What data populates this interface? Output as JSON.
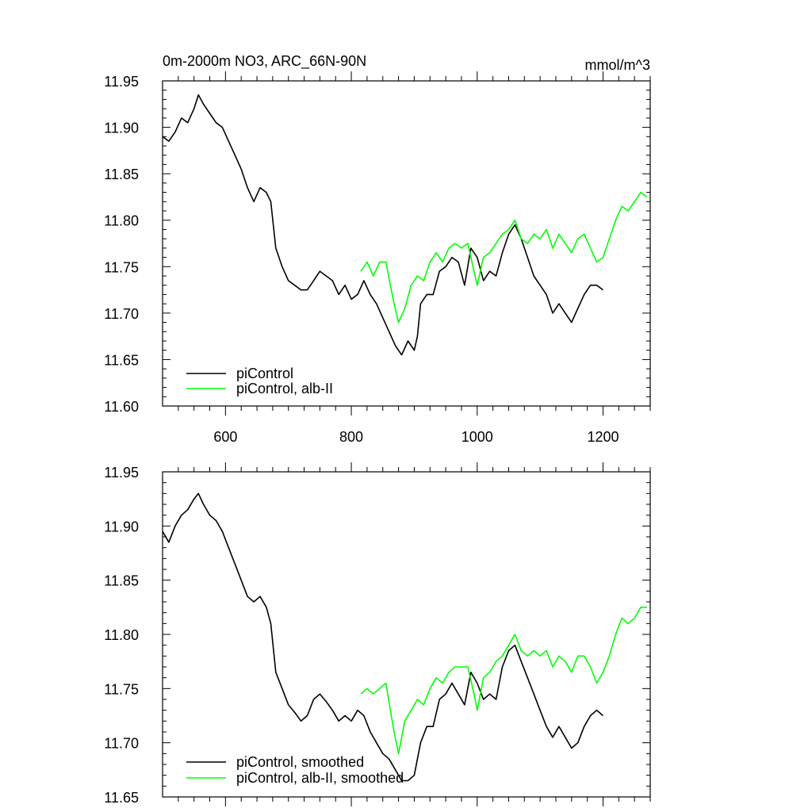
{
  "chart_data": [
    {
      "type": "line",
      "title": "0m-2000m NO3, ARC_66N-90N",
      "units_label": "mmol/m^3",
      "xlim": [
        500,
        1275
      ],
      "ylim": [
        11.6,
        11.95
      ],
      "xticks": [
        600,
        800,
        1000,
        1200
      ],
      "xtick_labels": [
        "600",
        "800",
        "1000",
        "1200"
      ],
      "yticks": [
        11.6,
        11.65,
        11.7,
        11.75,
        11.8,
        11.85,
        11.9,
        11.95
      ],
      "ytick_labels": [
        "11.60",
        "11.65",
        "11.70",
        "11.75",
        "11.80",
        "11.85",
        "11.90",
        "11.95"
      ],
      "grid": false,
      "legend_position": "bottom-left",
      "series": [
        {
          "name": "piControl",
          "color": "#000000",
          "x": [
            500,
            510,
            520,
            530,
            540,
            550,
            557,
            565,
            575,
            585,
            595,
            605,
            615,
            625,
            635,
            645,
            655,
            665,
            672,
            680,
            690,
            700,
            710,
            720,
            730,
            740,
            750,
            760,
            770,
            780,
            790,
            800,
            810,
            820,
            830,
            840,
            850,
            860,
            870,
            880,
            890,
            900,
            905,
            910,
            920,
            930,
            940,
            950,
            960,
            970,
            980,
            990,
            1000,
            1010,
            1020,
            1030,
            1040,
            1050,
            1060,
            1070,
            1080,
            1090,
            1100,
            1110,
            1120,
            1130,
            1140,
            1150,
            1160,
            1170,
            1180,
            1190,
            1200
          ],
          "y": [
            11.89,
            11.885,
            11.895,
            11.91,
            11.905,
            11.92,
            11.935,
            11.925,
            11.915,
            11.905,
            11.9,
            11.885,
            11.87,
            11.855,
            11.835,
            11.82,
            11.835,
            11.83,
            11.82,
            11.77,
            11.75,
            11.735,
            11.73,
            11.725,
            11.725,
            11.735,
            11.745,
            11.74,
            11.735,
            11.72,
            11.73,
            11.715,
            11.72,
            11.735,
            11.72,
            11.71,
            11.695,
            11.68,
            11.665,
            11.655,
            11.67,
            11.66,
            11.675,
            11.71,
            11.72,
            11.72,
            11.745,
            11.75,
            11.76,
            11.755,
            11.73,
            11.77,
            11.76,
            11.735,
            11.745,
            11.74,
            11.765,
            11.785,
            11.795,
            11.78,
            11.76,
            11.74,
            11.73,
            11.72,
            11.7,
            11.71,
            11.7,
            11.69,
            11.705,
            11.72,
            11.73,
            11.73,
            11.725
          ]
        },
        {
          "name": "piControl, alb-II",
          "color": "#00ff00",
          "x": [
            815,
            825,
            835,
            845,
            855,
            862,
            868,
            875,
            885,
            895,
            905,
            915,
            925,
            935,
            945,
            955,
            965,
            975,
            985,
            995,
            1000,
            1010,
            1020,
            1030,
            1040,
            1050,
            1060,
            1070,
            1080,
            1090,
            1100,
            1110,
            1120,
            1130,
            1140,
            1150,
            1160,
            1170,
            1180,
            1190,
            1200,
            1210,
            1220,
            1230,
            1240,
            1250,
            1260,
            1270
          ],
          "y": [
            11.745,
            11.755,
            11.74,
            11.755,
            11.755,
            11.73,
            11.71,
            11.69,
            11.705,
            11.73,
            11.74,
            11.735,
            11.755,
            11.765,
            11.755,
            11.77,
            11.775,
            11.77,
            11.775,
            11.745,
            11.73,
            11.76,
            11.765,
            11.775,
            11.785,
            11.79,
            11.8,
            11.78,
            11.775,
            11.785,
            11.78,
            11.79,
            11.77,
            11.785,
            11.775,
            11.765,
            11.78,
            11.785,
            11.77,
            11.755,
            11.76,
            11.78,
            11.8,
            11.815,
            11.81,
            11.82,
            11.83,
            11.825
          ]
        }
      ]
    },
    {
      "type": "line",
      "xlim": [
        500,
        1275
      ],
      "ylim": [
        11.65,
        11.95
      ],
      "yticks": [
        11.65,
        11.7,
        11.75,
        11.8,
        11.85,
        11.9,
        11.95
      ],
      "ytick_labels": [
        "11.65",
        "11.70",
        "11.75",
        "11.80",
        "11.85",
        "11.90",
        "11.95"
      ],
      "xticks": [
        600,
        800,
        1000,
        1200
      ],
      "grid": false,
      "legend_position": "bottom-left",
      "series": [
        {
          "name": "piControl, smoothed",
          "color": "#000000",
          "x": [
            500,
            510,
            520,
            530,
            540,
            550,
            557,
            565,
            575,
            585,
            595,
            605,
            615,
            625,
            635,
            645,
            655,
            665,
            672,
            680,
            690,
            700,
            710,
            720,
            730,
            740,
            750,
            760,
            770,
            780,
            790,
            800,
            810,
            820,
            830,
            840,
            850,
            860,
            870,
            880,
            890,
            900,
            910,
            920,
            930,
            940,
            950,
            960,
            970,
            980,
            990,
            1000,
            1010,
            1020,
            1030,
            1040,
            1050,
            1060,
            1070,
            1080,
            1090,
            1100,
            1110,
            1120,
            1130,
            1140,
            1150,
            1160,
            1170,
            1180,
            1190,
            1200
          ],
          "y": [
            11.895,
            11.885,
            11.9,
            11.91,
            11.915,
            11.925,
            11.93,
            11.92,
            11.91,
            11.905,
            11.895,
            11.88,
            11.865,
            11.85,
            11.835,
            11.83,
            11.835,
            11.825,
            11.81,
            11.765,
            11.75,
            11.735,
            11.728,
            11.72,
            11.725,
            11.74,
            11.745,
            11.738,
            11.73,
            11.72,
            11.725,
            11.72,
            11.73,
            11.725,
            11.71,
            11.7,
            11.69,
            11.685,
            11.675,
            11.665,
            11.665,
            11.67,
            11.7,
            11.715,
            11.715,
            11.74,
            11.745,
            11.755,
            11.745,
            11.735,
            11.765,
            11.755,
            11.74,
            11.745,
            11.74,
            11.77,
            11.785,
            11.79,
            11.775,
            11.76,
            11.745,
            11.73,
            11.715,
            11.705,
            11.715,
            11.705,
            11.695,
            11.7,
            11.715,
            11.725,
            11.73,
            11.725
          ]
        },
        {
          "name": "piControl, alb-II, smoothed",
          "color": "#00ff00",
          "x": [
            815,
            825,
            835,
            845,
            855,
            862,
            868,
            875,
            885,
            895,
            905,
            915,
            925,
            935,
            945,
            955,
            965,
            975,
            985,
            995,
            1000,
            1010,
            1020,
            1030,
            1040,
            1050,
            1060,
            1070,
            1080,
            1090,
            1100,
            1110,
            1120,
            1130,
            1140,
            1150,
            1160,
            1170,
            1180,
            1190,
            1200,
            1210,
            1220,
            1230,
            1240,
            1250,
            1260,
            1270
          ],
          "y": [
            11.745,
            11.75,
            11.745,
            11.75,
            11.755,
            11.73,
            11.71,
            11.69,
            11.72,
            11.73,
            11.74,
            11.735,
            11.75,
            11.76,
            11.755,
            11.765,
            11.77,
            11.77,
            11.77,
            11.745,
            11.73,
            11.76,
            11.765,
            11.775,
            11.78,
            11.79,
            11.8,
            11.785,
            11.78,
            11.785,
            11.78,
            11.785,
            11.77,
            11.78,
            11.775,
            11.765,
            11.78,
            11.78,
            11.77,
            11.755,
            11.765,
            11.78,
            11.8,
            11.815,
            11.81,
            11.815,
            11.825,
            11.825
          ]
        }
      ]
    }
  ]
}
